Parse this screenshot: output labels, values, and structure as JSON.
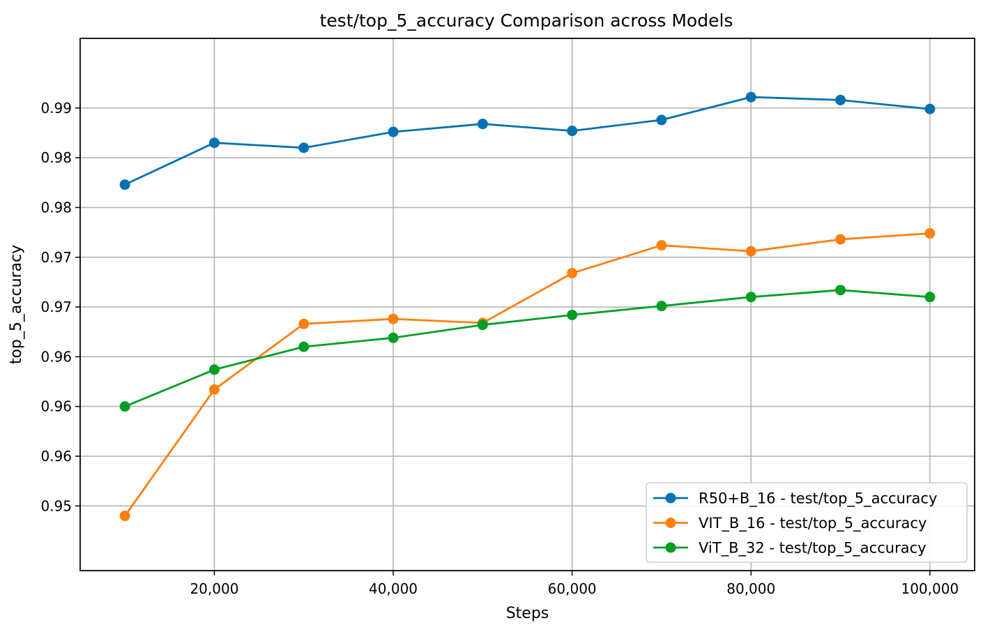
{
  "chart_data": {
    "type": "line",
    "title": "test/top_5_accuracy Comparison across Models",
    "xlabel": "Steps",
    "ylabel": "top_5_accuracy",
    "x": [
      10000,
      20000,
      30000,
      40000,
      50000,
      60000,
      70000,
      80000,
      90000,
      100000
    ],
    "xlim": [
      5000,
      105000
    ],
    "ylim": [
      0.9435,
      0.997
    ],
    "x_ticks": [
      20000,
      40000,
      60000,
      80000,
      100000
    ],
    "x_tick_labels": [
      "20,000",
      "40,000",
      "60,000",
      "80,000",
      "100,000"
    ],
    "y_ticks": [
      0.95,
      0.955,
      0.96,
      0.965,
      0.97,
      0.975,
      0.98,
      0.985,
      0.99
    ],
    "y_tick_labels": [
      "0.95",
      "0.96",
      "0.96",
      "0.96",
      "0.97",
      "0.97",
      "0.98",
      "0.98",
      "0.99"
    ],
    "grid": true,
    "legend_position": "bottom-right",
    "series": [
      {
        "name": "R50+B_16 - test/top_5_accuracy",
        "color": "#0072B2",
        "values": [
          0.9823,
          0.9865,
          0.986,
          0.9876,
          0.9884,
          0.9877,
          0.9888,
          0.9911,
          0.9908,
          0.9899
        ]
      },
      {
        "name": "VIT_B_16 - test/top_5_accuracy",
        "color": "#FF7F0E",
        "values": [
          0.949,
          0.9617,
          0.9683,
          0.9688,
          0.9684,
          0.9734,
          0.9762,
          0.9756,
          0.9768,
          0.9774
        ]
      },
      {
        "name": "ViT_B_32 - test/top_5_accuracy",
        "color": "#009E24",
        "values": [
          0.96,
          0.9637,
          0.966,
          0.9669,
          0.9682,
          0.9692,
          0.9701,
          0.971,
          0.9717,
          0.971
        ]
      }
    ]
  }
}
